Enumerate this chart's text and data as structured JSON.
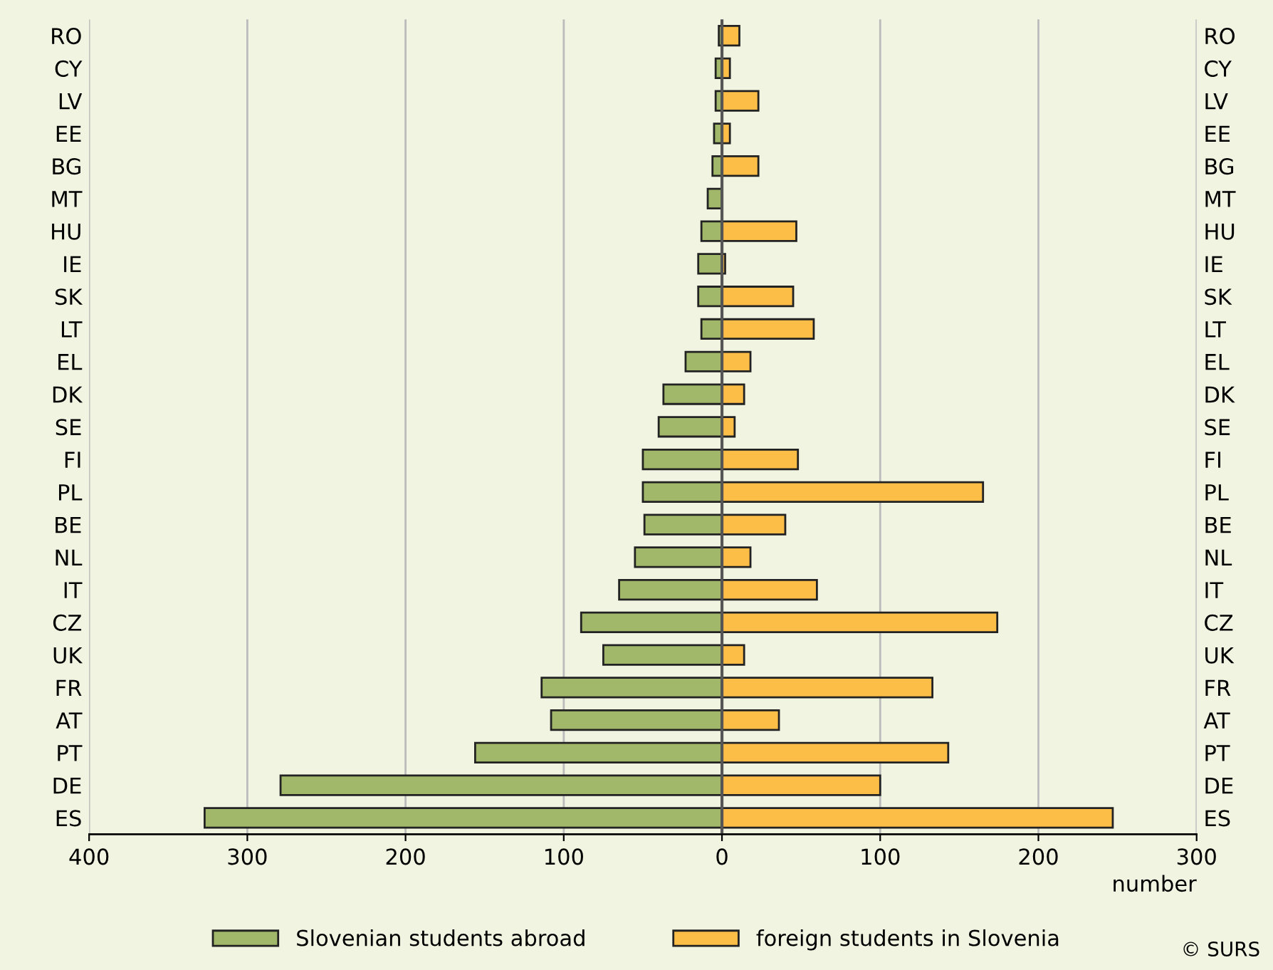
{
  "chart_data": {
    "type": "bar",
    "orientation": "horizontal",
    "stacked": true,
    "categories": [
      "RO",
      "CY",
      "LV",
      "EE",
      "BG",
      "MT",
      "HU",
      "IE",
      "SK",
      "LT",
      "EL",
      "DK",
      "SE",
      "FI",
      "PL",
      "BE",
      "NL",
      "IT",
      "CZ",
      "UK",
      "FR",
      "AT",
      "PT",
      "DE",
      "ES"
    ],
    "series": [
      {
        "name": "Slovenian students abroad",
        "color": "#a1b769",
        "values": [
          -2,
          -4,
          -4,
          -5,
          -6,
          -9,
          -13,
          -15,
          -15,
          -13,
          -23,
          -37,
          -40,
          -50,
          -50,
          -49,
          -55,
          -65,
          -89,
          -75,
          -114,
          -108,
          -156,
          -279,
          -327
        ]
      },
      {
        "name": "foreign students in Slovenia",
        "color": "#fdbe48",
        "values": [
          11,
          5,
          23,
          5,
          23,
          null,
          47,
          2,
          45,
          58,
          18,
          14,
          8,
          48,
          165,
          40,
          18,
          60,
          174,
          14,
          133,
          36,
          143,
          100,
          247
        ]
      }
    ],
    "xlim": [
      -400,
      300
    ],
    "xticks": [
      {
        "value": -400,
        "label": "400"
      },
      {
        "value": -300,
        "label": "300"
      },
      {
        "value": -200,
        "label": "200"
      },
      {
        "value": -100,
        "label": "100"
      },
      0,
      100,
      200,
      300
    ],
    "xlabel": "number",
    "grid": "x",
    "legend": "bottom",
    "annotations": [
      "© SURS"
    ]
  }
}
